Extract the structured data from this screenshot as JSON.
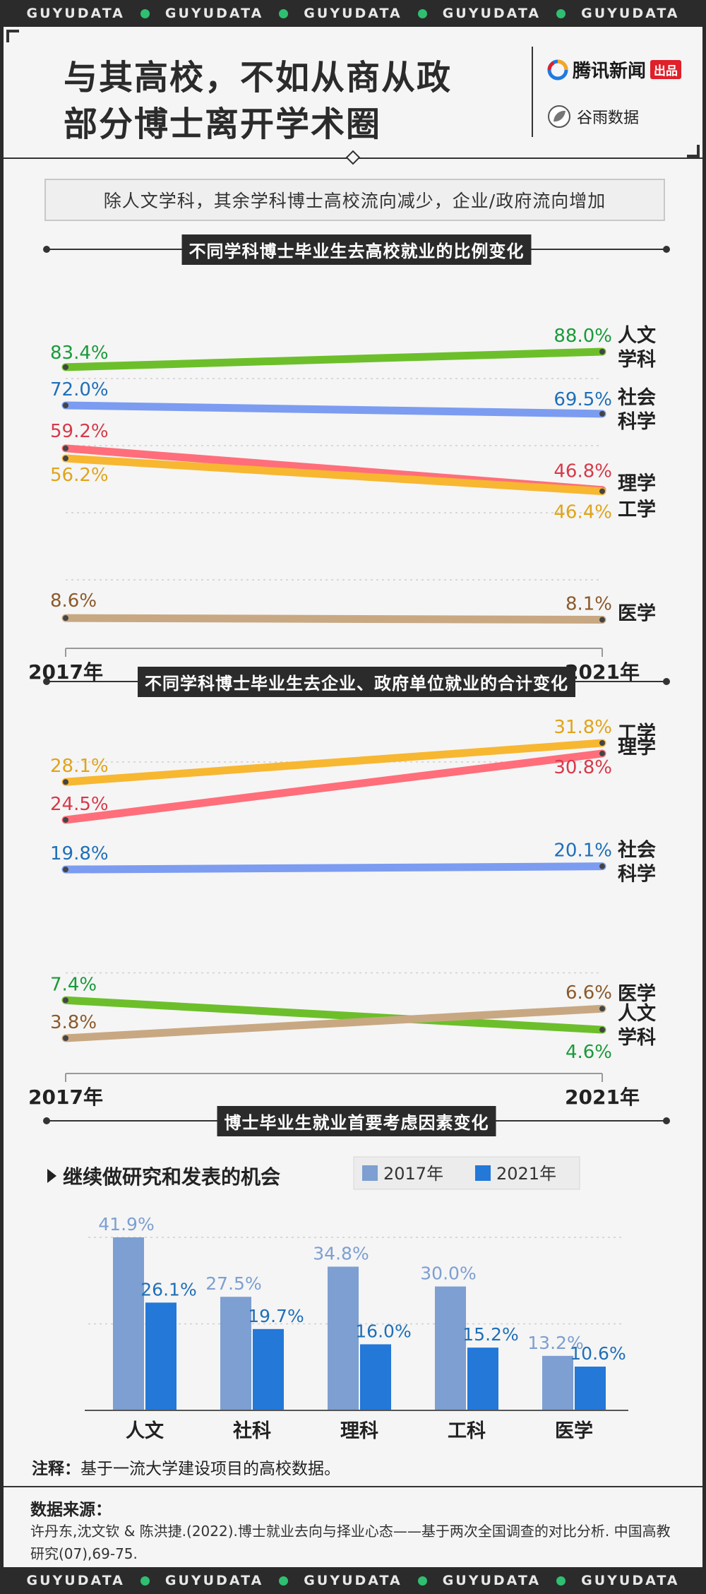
{
  "banner": {
    "words": [
      "GUYUDATA",
      "GUYUDATA",
      "GUYUDATA",
      "GUYUDATA",
      "GUYUDATA"
    ]
  },
  "header": {
    "title_line1": "与其高校，不如从商从政",
    "title_line2": "部分博士离开学术圈",
    "brand1": "腾讯新闻",
    "brand1_badge": "出品",
    "brand2": "谷雨数据"
  },
  "subtitle": "除人文学科，其余学科博士高校流向减少，企业/政府流向增加",
  "colors": {
    "humanities": "#6cbf2a",
    "social": "#7b9cf0",
    "science": "#ff6e7a",
    "engineering": "#f7b731",
    "medicine": "#c8a882",
    "bar2017": "#7d9fd1",
    "bar2021": "#2378d8"
  },
  "chart_data": [
    {
      "type": "line",
      "title": "不同学科博士毕业生去高校就业的比例变化",
      "x": [
        "2017年",
        "2021年"
      ],
      "series": [
        {
          "name": "人文学科",
          "values": [
            83.4,
            88.0
          ],
          "labels": [
            "83.4%",
            "88.0%"
          ],
          "color": "#6cbf2a",
          "label_color": "#1a9a3a"
        },
        {
          "name": "社会科学",
          "values": [
            72.0,
            69.5
          ],
          "labels": [
            "72.0%",
            "69.5%"
          ],
          "color": "#7b9cf0",
          "label_color": "#1f6fb8"
        },
        {
          "name": "理学",
          "values": [
            59.2,
            46.8
          ],
          "labels": [
            "59.2%",
            "46.8%"
          ],
          "color": "#ff6e7a",
          "label_color": "#d63a4a"
        },
        {
          "name": "工学",
          "values": [
            56.2,
            46.4
          ],
          "labels": [
            "56.2%",
            "46.4%"
          ],
          "color": "#f7b731",
          "label_color": "#e0a41a"
        },
        {
          "name": "医学",
          "values": [
            8.6,
            8.1
          ],
          "labels": [
            "8.6%",
            "8.1%"
          ],
          "color": "#c8a882",
          "label_color": "#8b5a2b"
        }
      ]
    },
    {
      "type": "line",
      "title": "不同学科博士毕业生去企业、政府单位就业的合计变化",
      "x": [
        "2017年",
        "2021年"
      ],
      "series": [
        {
          "name": "工学",
          "values": [
            28.1,
            31.8
          ],
          "labels": [
            "28.1%",
            "31.8%"
          ],
          "color": "#f7b731",
          "label_color": "#e0a41a"
        },
        {
          "name": "理学",
          "values": [
            24.5,
            30.8
          ],
          "labels": [
            "24.5%",
            "30.8%"
          ],
          "color": "#ff6e7a",
          "label_color": "#d63a4a"
        },
        {
          "name": "社会科学",
          "values": [
            19.8,
            20.1
          ],
          "labels": [
            "19.8%",
            "20.1%"
          ],
          "color": "#7b9cf0",
          "label_color": "#1f6fb8"
        },
        {
          "name": "人文学科",
          "values": [
            7.4,
            4.6
          ],
          "labels": [
            "7.4%",
            "4.6%"
          ],
          "color": "#6cbf2a",
          "label_color": "#1a9a3a"
        },
        {
          "name": "医学",
          "values": [
            3.8,
            6.6
          ],
          "labels": [
            "3.8%",
            "6.6%"
          ],
          "color": "#c8a882",
          "label_color": "#8b5a2b"
        }
      ]
    },
    {
      "type": "bar",
      "title": "博士毕业生就业首要考虑因素变化",
      "subtitle": "继续做研究和发表的机会",
      "categories": [
        "人文",
        "社科",
        "理科",
        "工科",
        "医学"
      ],
      "series": [
        {
          "name": "2017年",
          "values": [
            41.9,
            27.5,
            34.8,
            30.0,
            13.2
          ],
          "labels": [
            "41.9%",
            "27.5%",
            "34.8%",
            "30.0%",
            "13.2%"
          ]
        },
        {
          "name": "2021年",
          "values": [
            26.1,
            19.7,
            16.0,
            15.2,
            10.6
          ],
          "labels": [
            "26.1%",
            "19.7%",
            "16.0%",
            "15.2%",
            "10.6%"
          ]
        }
      ],
      "legend": "top-right"
    }
  ],
  "note_label": "注释：",
  "note": "基于一流大学建设项目的高校数据。",
  "source_title": "数据来源：",
  "source_text": "许丹东,沈文钦 & 陈洪捷.(2022).博士就业去向与择业心态——基于两次全国调查的对比分析. 中国高教研究(07),69-75."
}
